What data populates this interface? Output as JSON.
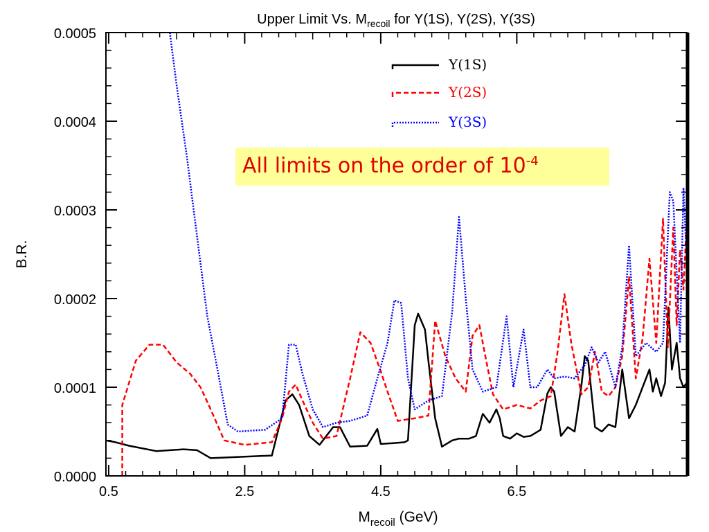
{
  "chart_data": {
    "type": "line",
    "title": "Upper Limit Vs. M",
    "title_sub": "recoil",
    "title_tail": " for Υ(1S), Υ(2S), Υ(3S)",
    "ylabel": "B.R.",
    "xlabel": "M",
    "xlabel_sub": "recoil",
    "xlabel_tail": " (GeV)",
    "xlim": [
      0.46,
      9.0
    ],
    "ylim": [
      0,
      0.0005
    ],
    "x_ticks": [
      "0.5",
      "2.5",
      "4.5",
      "6.5"
    ],
    "y_ticks": [
      "0.0000",
      "0.0001",
      "0.0002",
      "0.0003",
      "0.0004",
      "0.0005"
    ],
    "legend_position": "top-right",
    "series": [
      {
        "name": "Υ(1S)",
        "color": "#000000",
        "style": "solid",
        "points": [
          [
            0.46,
            4e-05
          ],
          [
            0.6,
            3.8e-05
          ],
          [
            0.8,
            3.4e-05
          ],
          [
            1.2,
            2.8e-05
          ],
          [
            1.6,
            3e-05
          ],
          [
            1.8,
            2.9e-05
          ],
          [
            2.0,
            2e-05
          ],
          [
            2.3,
            2.1e-05
          ],
          [
            2.9,
            2.3e-05
          ],
          [
            3.1,
            8.5e-05
          ],
          [
            3.2,
            9.2e-05
          ],
          [
            3.3,
            8e-05
          ],
          [
            3.45,
            4.5e-05
          ],
          [
            3.6,
            3.5e-05
          ],
          [
            3.8,
            5.5e-05
          ],
          [
            3.9,
            5.5e-05
          ],
          [
            4.05,
            3.3e-05
          ],
          [
            4.3,
            3.4e-05
          ],
          [
            4.45,
            5.3e-05
          ],
          [
            4.5,
            3.6e-05
          ],
          [
            4.7,
            3.7e-05
          ],
          [
            4.85,
            3.8e-05
          ],
          [
            4.9,
            4e-05
          ],
          [
            5.0,
            0.00017
          ],
          [
            5.05,
            0.000183
          ],
          [
            5.15,
            0.000165
          ],
          [
            5.2,
            0.00013
          ],
          [
            5.3,
            6.5e-05
          ],
          [
            5.4,
            3.3e-05
          ],
          [
            5.55,
            4e-05
          ],
          [
            5.65,
            4.2e-05
          ],
          [
            5.8,
            4.2e-05
          ],
          [
            5.9,
            4.5e-05
          ],
          [
            6.0,
            7e-05
          ],
          [
            6.1,
            6e-05
          ],
          [
            6.2,
            7.5e-05
          ],
          [
            6.25,
            6.5e-05
          ],
          [
            6.3,
            4.5e-05
          ],
          [
            6.4,
            4.2e-05
          ],
          [
            6.5,
            4.8e-05
          ],
          [
            6.6,
            4.4e-05
          ],
          [
            6.7,
            4.5e-05
          ],
          [
            6.85,
            5.2e-05
          ],
          [
            6.95,
            9.3e-05
          ],
          [
            7.0,
            0.0001
          ],
          [
            7.05,
            9.5e-05
          ],
          [
            7.15,
            4.5e-05
          ],
          [
            7.25,
            5.5e-05
          ],
          [
            7.35,
            5e-05
          ],
          [
            7.45,
            0.000102
          ],
          [
            7.5,
            0.000135
          ],
          [
            7.55,
            0.00013
          ],
          [
            7.65,
            5.5e-05
          ],
          [
            7.75,
            5e-05
          ],
          [
            7.85,
            5.8e-05
          ],
          [
            7.95,
            5.5e-05
          ],
          [
            8.05,
            0.00012
          ],
          [
            8.15,
            6.5e-05
          ],
          [
            8.25,
            8e-05
          ],
          [
            8.35,
            0.0001
          ],
          [
            8.45,
            0.00012
          ],
          [
            8.5,
            9.5e-05
          ],
          [
            8.55,
            0.00011
          ],
          [
            8.62,
            9e-05
          ],
          [
            8.68,
            0.000105
          ],
          [
            8.73,
            0.00019
          ],
          [
            8.78,
            0.00012
          ],
          [
            8.85,
            0.00015
          ],
          [
            8.9,
            0.00011
          ],
          [
            8.95,
            0.0001
          ],
          [
            9.0,
            0.000105
          ]
        ]
      },
      {
        "name": "Υ(2S)",
        "color": "#ff0000",
        "style": "dashed",
        "points": [
          [
            0.7,
            0.0
          ],
          [
            0.7,
            8e-05
          ],
          [
            0.9,
            0.00013
          ],
          [
            1.1,
            0.000148
          ],
          [
            1.3,
            0.000148
          ],
          [
            1.5,
            0.000128
          ],
          [
            1.7,
            0.000115
          ],
          [
            1.85,
            0.0001
          ],
          [
            2.0,
            7.5e-05
          ],
          [
            2.2,
            4e-05
          ],
          [
            2.5,
            3.5e-05
          ],
          [
            2.9,
            3.8e-05
          ],
          [
            3.05,
            6.5e-05
          ],
          [
            3.15,
            9.5e-05
          ],
          [
            3.25,
            0.000103
          ],
          [
            3.35,
            8.5e-05
          ],
          [
            3.5,
            6e-05
          ],
          [
            3.65,
            4.2e-05
          ],
          [
            3.85,
            4.5e-05
          ],
          [
            4.05,
            0.00011
          ],
          [
            4.2,
            0.000162
          ],
          [
            4.35,
            0.00015
          ],
          [
            4.5,
            0.000118
          ],
          [
            4.6,
            9.5e-05
          ],
          [
            4.75,
            6.2e-05
          ],
          [
            5.0,
            6.5e-05
          ],
          [
            5.2,
            6.8e-05
          ],
          [
            5.3,
            0.000175
          ],
          [
            5.45,
            0.000135
          ],
          [
            5.6,
            0.00011
          ],
          [
            5.75,
            9.5e-05
          ],
          [
            5.85,
            0.000158
          ],
          [
            5.95,
            0.00017
          ],
          [
            6.05,
            0.00013
          ],
          [
            6.15,
            9.2e-05
          ],
          [
            6.3,
            7.5e-05
          ],
          [
            6.5,
            8e-05
          ],
          [
            6.7,
            7.6e-05
          ],
          [
            6.85,
            8.5e-05
          ],
          [
            7.0,
            9e-05
          ],
          [
            7.1,
            0.00014
          ],
          [
            7.2,
            0.000205
          ],
          [
            7.3,
            0.00015
          ],
          [
            7.45,
            9.2e-05
          ],
          [
            7.55,
            0.0001
          ],
          [
            7.65,
            0.00014
          ],
          [
            7.75,
            9.5e-05
          ],
          [
            7.85,
            9e-05
          ],
          [
            7.95,
            0.0001
          ],
          [
            8.05,
            0.000135
          ],
          [
            8.15,
            0.000225
          ],
          [
            8.25,
            0.00011
          ],
          [
            8.35,
            0.000155
          ],
          [
            8.45,
            0.000245
          ],
          [
            8.55,
            0.00015
          ],
          [
            8.65,
            0.00029
          ],
          [
            8.72,
            0.000145
          ],
          [
            8.8,
            0.00028
          ],
          [
            8.85,
            0.00017
          ],
          [
            8.9,
            0.000255
          ],
          [
            8.95,
            0.00021
          ],
          [
            9.0,
            0.00029
          ]
        ]
      },
      {
        "name": "Υ(3S)",
        "color": "#0000ff",
        "style": "dotted",
        "points": [
          [
            1.4,
            0.0005
          ],
          [
            1.5,
            0.00044
          ],
          [
            1.65,
            0.00036
          ],
          [
            1.8,
            0.00027
          ],
          [
            1.95,
            0.00018
          ],
          [
            2.1,
            0.00012
          ],
          [
            2.25,
            5.8e-05
          ],
          [
            2.4,
            5e-05
          ],
          [
            2.8,
            5.2e-05
          ],
          [
            3.05,
            6.5e-05
          ],
          [
            3.15,
            0.000148
          ],
          [
            3.25,
            0.000148
          ],
          [
            3.35,
            0.000115
          ],
          [
            3.5,
            7.5e-05
          ],
          [
            3.65,
            5.5e-05
          ],
          [
            3.85,
            6e-05
          ],
          [
            4.05,
            6.2e-05
          ],
          [
            4.3,
            6.8e-05
          ],
          [
            4.45,
            0.00011
          ],
          [
            4.6,
            0.00015
          ],
          [
            4.7,
            0.000198
          ],
          [
            4.8,
            0.000195
          ],
          [
            4.9,
            0.00011
          ],
          [
            5.0,
            7.5e-05
          ],
          [
            5.2,
            8.5e-05
          ],
          [
            5.4,
            9e-05
          ],
          [
            5.55,
            0.000185
          ],
          [
            5.65,
            0.000292
          ],
          [
            5.75,
            0.0002
          ],
          [
            5.85,
            0.00012
          ],
          [
            6.0,
            9.5e-05
          ],
          [
            6.2,
            0.0001
          ],
          [
            6.35,
            0.00018
          ],
          [
            6.45,
            0.0001
          ],
          [
            6.6,
            0.000165
          ],
          [
            6.7,
            0.0001
          ],
          [
            6.8,
            0.0001
          ],
          [
            6.95,
            0.00012
          ],
          [
            7.05,
            0.00011
          ],
          [
            7.2,
            0.000112
          ],
          [
            7.35,
            0.00011
          ],
          [
            7.5,
            0.000125
          ],
          [
            7.6,
            0.000145
          ],
          [
            7.7,
            0.000128
          ],
          [
            7.8,
            0.00014
          ],
          [
            7.95,
            0.0001
          ],
          [
            8.05,
            0.000145
          ],
          [
            8.15,
            0.00026
          ],
          [
            8.25,
            0.000135
          ],
          [
            8.4,
            0.00015
          ],
          [
            8.55,
            0.00014
          ],
          [
            8.65,
            0.00015
          ],
          [
            8.75,
            0.00032
          ],
          [
            8.8,
            0.00031
          ],
          [
            8.9,
            0.00015
          ],
          [
            8.95,
            0.000325
          ],
          [
            9.0,
            0.00024
          ]
        ]
      }
    ],
    "annotation": {
      "text": "All limits on the order of 10",
      "superscript": "-4",
      "box_color": "#ffff99",
      "text_color": "#e00000"
    }
  }
}
